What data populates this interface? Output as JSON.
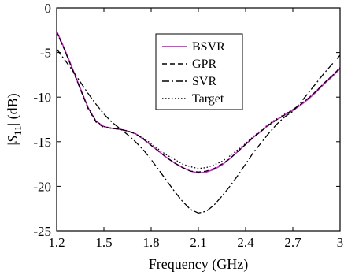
{
  "chart_data": {
    "type": "line",
    "title": "",
    "xlabel": "Frequency (GHz)",
    "ylabel": "|S₁₁| (dB)",
    "ylabel_parts": {
      "left": "|",
      "main": "S",
      "sub": "11",
      "right": "| (dB)"
    },
    "xlim": [
      1.2,
      3.0
    ],
    "ylim": [
      -25,
      0
    ],
    "xticks": [
      1.2,
      1.5,
      1.8,
      2.1,
      2.4,
      2.7,
      3.0
    ],
    "xtick_labels": [
      "1.2",
      "1.5",
      "1.8",
      "2.1",
      "2.4",
      "2.7",
      "3"
    ],
    "yticks": [
      0,
      -5,
      -10,
      -15,
      -20,
      -25
    ],
    "ytick_labels": [
      "0",
      "-5",
      "-10",
      "-15",
      "-20",
      "-25"
    ],
    "grid": false,
    "legend_position": "top-center",
    "series": [
      {
        "name": "BSVR",
        "color": "#e020e0",
        "dash": "solid",
        "x": [
          1.2,
          1.25,
          1.3,
          1.35,
          1.4,
          1.45,
          1.5,
          1.55,
          1.6,
          1.65,
          1.7,
          1.75,
          1.8,
          1.85,
          1.9,
          1.95,
          2.0,
          2.05,
          2.1,
          2.15,
          2.2,
          2.25,
          2.3,
          2.35,
          2.4,
          2.45,
          2.5,
          2.55,
          2.6,
          2.65,
          2.7,
          2.75,
          2.8,
          2.85,
          2.9,
          2.95,
          3.0
        ],
        "y": [
          -2.6,
          -4.6,
          -6.8,
          -9.0,
          -11.2,
          -12.7,
          -13.3,
          -13.5,
          -13.6,
          -13.8,
          -14.1,
          -14.7,
          -15.4,
          -16.1,
          -16.8,
          -17.4,
          -17.9,
          -18.3,
          -18.5,
          -18.4,
          -18.1,
          -17.6,
          -16.9,
          -16.1,
          -15.3,
          -14.5,
          -13.8,
          -13.1,
          -12.5,
          -12.0,
          -11.5,
          -10.9,
          -10.2,
          -9.4,
          -8.5,
          -7.7,
          -6.8
        ]
      },
      {
        "name": "GPR",
        "color": "#000000",
        "dash": "6,4",
        "x": [
          1.2,
          1.25,
          1.3,
          1.35,
          1.4,
          1.45,
          1.5,
          1.55,
          1.6,
          1.65,
          1.7,
          1.75,
          1.8,
          1.85,
          1.9,
          1.95,
          2.0,
          2.05,
          2.1,
          2.15,
          2.2,
          2.25,
          2.3,
          2.35,
          2.4,
          2.45,
          2.5,
          2.55,
          2.6,
          2.65,
          2.7,
          2.75,
          2.8,
          2.85,
          2.9,
          2.95,
          3.0
        ],
        "y": [
          -2.7,
          -4.7,
          -6.9,
          -9.1,
          -11.3,
          -12.8,
          -13.4,
          -13.5,
          -13.6,
          -13.8,
          -14.1,
          -14.7,
          -15.4,
          -16.1,
          -16.8,
          -17.4,
          -17.9,
          -18.3,
          -18.4,
          -18.3,
          -18.0,
          -17.5,
          -16.9,
          -16.1,
          -15.3,
          -14.5,
          -13.8,
          -13.1,
          -12.5,
          -12.0,
          -11.4,
          -10.8,
          -10.1,
          -9.3,
          -8.4,
          -7.6,
          -6.7
        ]
      },
      {
        "name": "SVR",
        "color": "#000000",
        "dash": "9,3,2,3",
        "x": [
          1.2,
          1.25,
          1.3,
          1.35,
          1.4,
          1.45,
          1.5,
          1.55,
          1.6,
          1.65,
          1.7,
          1.75,
          1.8,
          1.85,
          1.9,
          1.95,
          2.0,
          2.05,
          2.1,
          2.15,
          2.2,
          2.25,
          2.3,
          2.35,
          2.4,
          2.45,
          2.5,
          2.55,
          2.6,
          2.65,
          2.7,
          2.75,
          2.8,
          2.85,
          2.9,
          2.95,
          3.0
        ],
        "y": [
          -4.6,
          -5.8,
          -7.0,
          -8.3,
          -9.6,
          -10.8,
          -11.9,
          -12.8,
          -13.5,
          -14.2,
          -15.0,
          -15.9,
          -17.0,
          -18.2,
          -19.4,
          -20.6,
          -21.7,
          -22.6,
          -23.0,
          -22.8,
          -22.1,
          -21.1,
          -20.0,
          -18.8,
          -17.5,
          -16.2,
          -15.1,
          -14.0,
          -13.0,
          -12.2,
          -11.6,
          -10.6,
          -9.5,
          -8.4,
          -7.3,
          -6.3,
          -5.3
        ]
      },
      {
        "name": "Target",
        "color": "#000000",
        "dash": "1.5,2.5",
        "x": [
          1.2,
          1.25,
          1.3,
          1.35,
          1.4,
          1.45,
          1.5,
          1.55,
          1.6,
          1.65,
          1.7,
          1.75,
          1.8,
          1.85,
          1.9,
          1.95,
          2.0,
          2.05,
          2.1,
          2.15,
          2.2,
          2.25,
          2.3,
          2.35,
          2.4,
          2.45,
          2.5,
          2.55,
          2.6,
          2.65,
          2.7,
          2.75,
          2.8,
          2.85,
          2.9,
          2.95,
          3.0
        ],
        "y": [
          -2.7,
          -4.7,
          -6.9,
          -9.1,
          -11.2,
          -12.7,
          -13.3,
          -13.5,
          -13.6,
          -13.8,
          -14.1,
          -14.6,
          -15.2,
          -15.9,
          -16.5,
          -17.0,
          -17.5,
          -17.8,
          -18.0,
          -17.9,
          -17.6,
          -17.2,
          -16.6,
          -15.9,
          -15.2,
          -14.4,
          -13.7,
          -13.0,
          -12.4,
          -11.9,
          -11.4,
          -10.8,
          -10.1,
          -9.3,
          -8.4,
          -7.6,
          -6.7
        ]
      }
    ]
  }
}
